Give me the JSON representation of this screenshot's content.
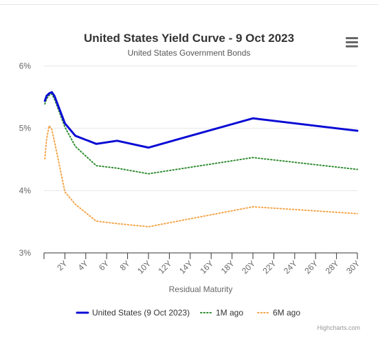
{
  "chart_data": {
    "type": "line",
    "title": "United States Yield Curve - 9 Oct 2023",
    "subtitle": "United States Government Bonds",
    "xlabel": "Residual Maturity",
    "ylabel": "",
    "xlim": [
      0,
      30
    ],
    "ylim": [
      3,
      6
    ],
    "x_tick_labels": [
      "2Y",
      "4Y",
      "6Y",
      "8Y",
      "10Y",
      "12Y",
      "14Y",
      "16Y",
      "18Y",
      "20Y",
      "22Y",
      "24Y",
      "26Y",
      "28Y",
      "30Y"
    ],
    "x_tick_values": [
      2,
      4,
      6,
      8,
      10,
      12,
      14,
      16,
      18,
      20,
      22,
      24,
      26,
      28,
      30
    ],
    "y_tick_labels": [
      "3%",
      "4%",
      "5%",
      "6%"
    ],
    "y_tick_values": [
      3,
      4,
      5,
      6
    ],
    "grid": "horizontal",
    "legend_position": "bottom",
    "series": [
      {
        "name": "United States (9 Oct 2023)",
        "color": "#0a0ad6",
        "style": "solid",
        "points": [
          [
            0.083,
            5.44
          ],
          [
            0.25,
            5.52
          ],
          [
            0.5,
            5.56
          ],
          [
            0.75,
            5.58
          ],
          [
            1,
            5.52
          ],
          [
            2,
            5.08
          ],
          [
            3,
            4.88
          ],
          [
            5,
            4.75
          ],
          [
            7,
            4.8
          ],
          [
            10,
            4.69
          ],
          [
            20,
            5.16
          ],
          [
            30,
            4.96
          ]
        ]
      },
      {
        "name": "1M ago",
        "color": "#2e8b2e",
        "style": "dotted",
        "points": [
          [
            0.083,
            5.39
          ],
          [
            0.25,
            5.47
          ],
          [
            0.5,
            5.53
          ],
          [
            0.75,
            5.55
          ],
          [
            1,
            5.47
          ],
          [
            2,
            5.02
          ],
          [
            3,
            4.71
          ],
          [
            5,
            4.4
          ],
          [
            7,
            4.36
          ],
          [
            10,
            4.27
          ],
          [
            20,
            4.53
          ],
          [
            30,
            4.34
          ]
        ]
      },
      {
        "name": "6M ago",
        "color": "#f5a447",
        "style": "dotted",
        "points": [
          [
            0.083,
            4.51
          ],
          [
            0.25,
            4.83
          ],
          [
            0.5,
            5.04
          ],
          [
            0.75,
            4.98
          ],
          [
            1,
            4.79
          ],
          [
            2,
            3.98
          ],
          [
            3,
            3.78
          ],
          [
            5,
            3.51
          ],
          [
            7,
            3.47
          ],
          [
            10,
            3.42
          ],
          [
            20,
            3.74
          ],
          [
            30,
            3.63
          ]
        ]
      }
    ]
  },
  "credits": "Highcharts.com",
  "menu_icon": "hamburger-menu-icon"
}
